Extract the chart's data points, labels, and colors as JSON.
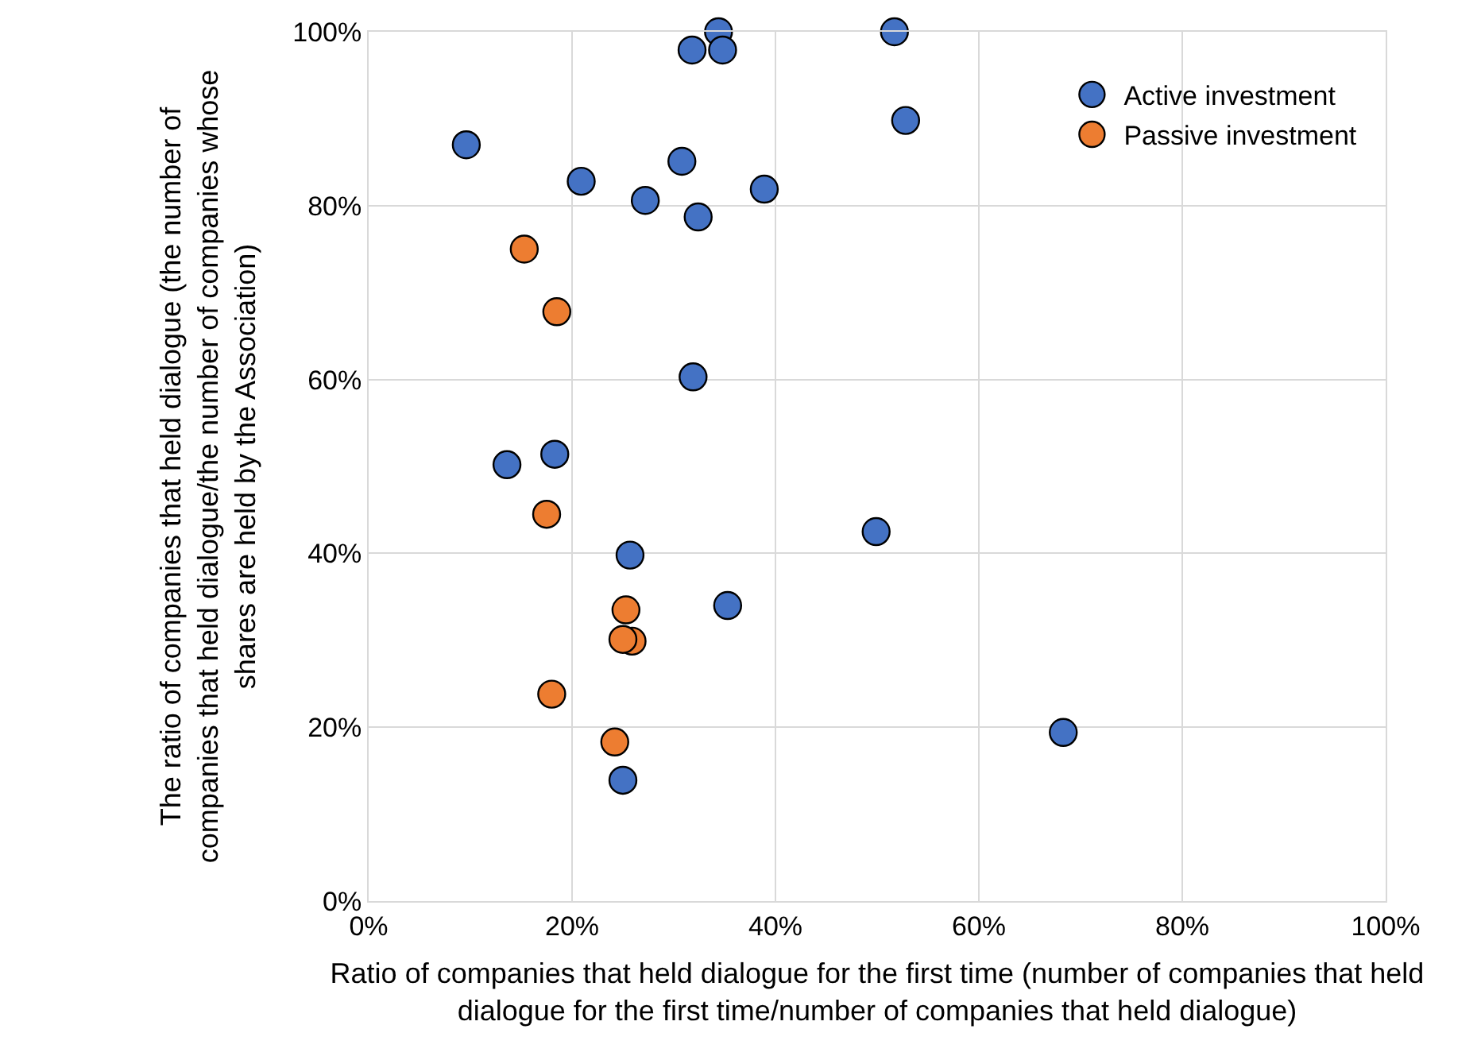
{
  "chart_data": {
    "type": "scatter",
    "xlabel": "Ratio of companies that held dialogue for the first time (number of companies that held dialogue for the first time/number of companies that held dialogue)",
    "ylabel": "The ratio of companies that held dialogue (the number of companies that held dialogue/the number of companies whose shares are held by the Association)",
    "xlim": [
      0,
      100
    ],
    "ylim": [
      0,
      100
    ],
    "xticks": [
      {
        "value": 0,
        "label": "0%"
      },
      {
        "value": 20,
        "label": "20%"
      },
      {
        "value": 40,
        "label": "40%"
      },
      {
        "value": 60,
        "label": "60%"
      },
      {
        "value": 80,
        "label": "80%"
      },
      {
        "value": 100,
        "label": "100%"
      }
    ],
    "yticks": [
      {
        "value": 0,
        "label": "0%"
      },
      {
        "value": 20,
        "label": "20%"
      },
      {
        "value": 40,
        "label": "40%"
      },
      {
        "value": 60,
        "label": "60%"
      },
      {
        "value": 80,
        "label": "80%"
      },
      {
        "value": 100,
        "label": "100%"
      }
    ],
    "grid": true,
    "legend": "top right",
    "marker": "circle",
    "series": [
      {
        "name": "Active investment",
        "color": "#4472c4",
        "x": [
          9.6,
          20.9,
          27.2,
          30.8,
          32.4,
          31.8,
          31.9,
          18.3,
          13.6,
          34.4,
          34.8,
          51.7,
          52.8,
          38.9,
          25.7,
          25.0,
          35.3,
          49.9,
          68.3
        ],
        "values": [
          87.0,
          82.8,
          80.6,
          85.1,
          78.7,
          97.9,
          60.3,
          51.4,
          50.2,
          100,
          97.9,
          100,
          89.8,
          81.9,
          39.8,
          13.9,
          34.0,
          42.5,
          19.4
        ]
      },
      {
        "name": "Passive investment",
        "color": "#ed7d31",
        "x": [
          15.3,
          18.5,
          17.5,
          25.3,
          25.9,
          25.0,
          18.0,
          24.2
        ],
        "values": [
          75.0,
          67.8,
          44.5,
          33.5,
          29.9,
          30.1,
          23.8,
          18.3
        ]
      }
    ]
  }
}
